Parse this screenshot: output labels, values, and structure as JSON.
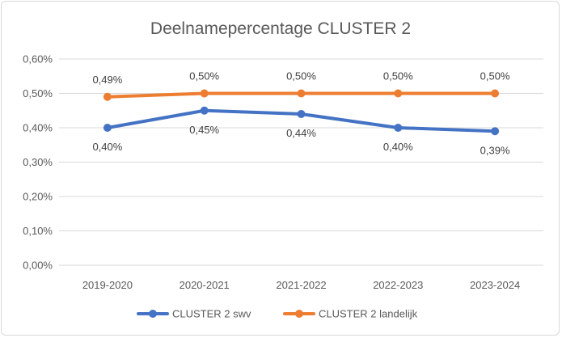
{
  "chart_data": {
    "type": "line",
    "title": "Deelnamepercentage CLUSTER 2",
    "xlabel": "",
    "ylabel": "",
    "categories": [
      "2019-2020",
      "2020-2021",
      "2021-2022",
      "2022-2023",
      "2023-2024"
    ],
    "ylim": [
      0,
      0.6
    ],
    "yticks": [
      0.0,
      0.1,
      0.2,
      0.3,
      0.4,
      0.5,
      0.6
    ],
    "ytick_labels": [
      "0,00%",
      "0,10%",
      "0,20%",
      "0,30%",
      "0,40%",
      "0,50%",
      "0,60%"
    ],
    "grid": true,
    "legend_position": "bottom",
    "series": [
      {
        "name": "CLUSTER 2 swv",
        "color": "#4472c4",
        "values": [
          0.4,
          0.45,
          0.44,
          0.4,
          0.39
        ],
        "labels": [
          "0,40%",
          "0,45%",
          "0,44%",
          "0,40%",
          "0,39%"
        ]
      },
      {
        "name": "CLUSTER 2 landelijk",
        "color": "#ed7d31",
        "values": [
          0.49,
          0.5,
          0.5,
          0.5,
          0.5
        ],
        "labels": [
          "0,49%",
          "0,50%",
          "0,50%",
          "0,50%",
          "0,50%"
        ]
      }
    ]
  }
}
